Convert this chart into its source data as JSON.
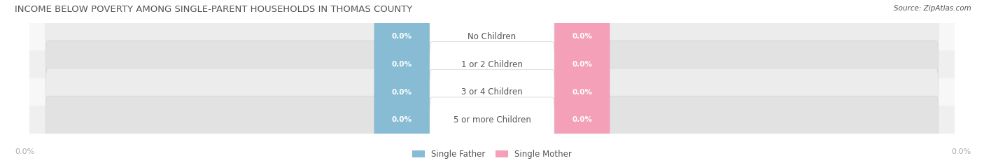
{
  "title": "INCOME BELOW POVERTY AMONG SINGLE-PARENT HOUSEHOLDS IN THOMAS COUNTY",
  "source": "Source: ZipAtlas.com",
  "categories": [
    "No Children",
    "1 or 2 Children",
    "3 or 4 Children",
    "5 or more Children"
  ],
  "single_father_values": [
    0.0,
    0.0,
    0.0,
    0.0
  ],
  "single_mother_values": [
    0.0,
    0.0,
    0.0,
    0.0
  ],
  "father_color": "#87bcd4",
  "mother_color": "#f4a0b8",
  "bar_bg_color_light": "#ececec",
  "bar_bg_color_dark": "#e2e2e2",
  "row_bg_light": "#f7f7f7",
  "row_bg_dark": "#efefef",
  "title_color": "#555555",
  "value_text_color": "#ffffff",
  "label_color": "#555555",
  "axis_label_color": "#aaaaaa",
  "background_color": "#ffffff",
  "figsize": [
    14.06,
    2.33
  ],
  "dpi": 100
}
